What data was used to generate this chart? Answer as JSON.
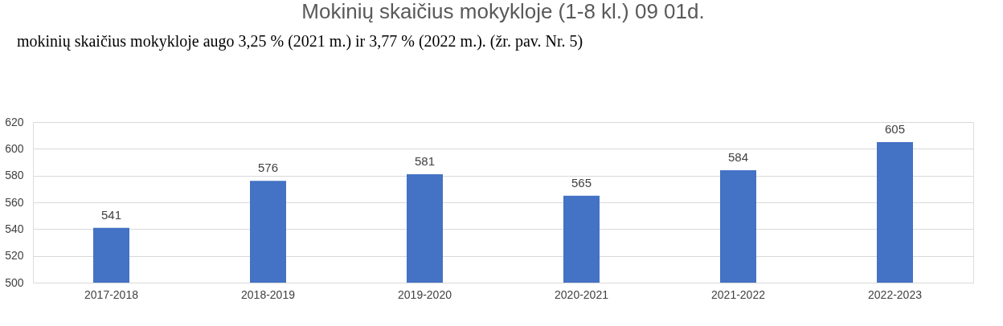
{
  "chart_data": {
    "type": "bar",
    "title": "Mokinių skaičius mokykloje (1-8 kl.) 09 01d.",
    "annotations": [
      "mokinių skaičius mokykloje augo 3,25 % (2021 m.) ir 3,77 % (2022 m.). (žr. pav. Nr. 5)"
    ],
    "categories": [
      "2017-2018",
      "2018-2019",
      "2019-2020",
      "2020-2021",
      "2021-2022",
      "2022-2023"
    ],
    "values": [
      541,
      576,
      581,
      565,
      584,
      605
    ],
    "color": "#4472c4",
    "ylim": [
      500,
      620
    ],
    "yticks": [
      500,
      520,
      540,
      560,
      580,
      600,
      620
    ],
    "grid": "y",
    "data_labels": true
  }
}
